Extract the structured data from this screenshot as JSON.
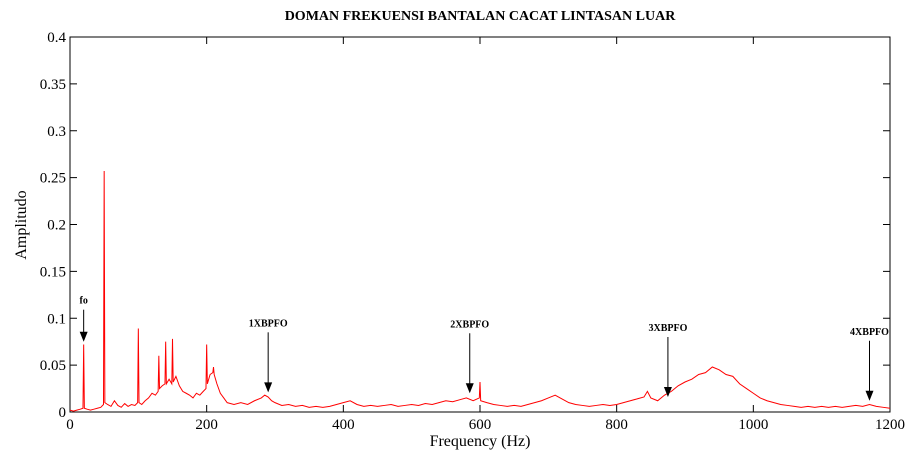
{
  "chart_data": {
    "type": "line",
    "title": "DOMAN FREKUENSI BANTALAN CACAT LINTASAN LUAR",
    "x_label": "Frequency (Hz)",
    "y_label": "Amplitudo",
    "color": "#ff0000",
    "xlim": [
      0,
      1200
    ],
    "ylim": [
      0,
      0.4
    ],
    "xticks": [
      0,
      200,
      400,
      600,
      800,
      1000,
      1200
    ],
    "yticks": [
      0,
      0.05,
      0.1,
      0.15,
      0.2,
      0.25,
      0.3,
      0.35,
      0.4
    ],
    "annotations": [
      {
        "text": "fo",
        "x": 20,
        "y": 0.075
      },
      {
        "text": "1XBPFO",
        "x": 290,
        "y": 0.021
      },
      {
        "text": "2XBPFO",
        "x": 585,
        "y": 0.02
      },
      {
        "text": "3XBPFO",
        "x": 875,
        "y": 0.016
      },
      {
        "text": "4XBPFO",
        "x": 1170,
        "y": 0.012
      }
    ],
    "x": [
      0,
      5,
      10,
      15,
      19,
      20,
      21,
      25,
      30,
      35,
      40,
      45,
      49,
      50,
      51,
      55,
      60,
      65,
      70,
      75,
      80,
      85,
      90,
      95,
      99,
      100,
      101,
      105,
      110,
      115,
      120,
      125,
      129,
      130,
      131,
      135,
      139,
      140,
      141,
      145,
      149,
      150,
      151,
      155,
      160,
      165,
      170,
      175,
      180,
      185,
      190,
      195,
      199,
      200,
      201,
      205,
      209,
      210,
      211,
      215,
      220,
      225,
      230,
      240,
      250,
      260,
      270,
      280,
      285,
      290,
      295,
      300,
      310,
      320,
      330,
      340,
      350,
      360,
      370,
      380,
      390,
      400,
      410,
      420,
      430,
      440,
      450,
      460,
      470,
      480,
      490,
      500,
      510,
      520,
      530,
      540,
      550,
      560,
      570,
      580,
      590,
      599,
      600,
      601,
      610,
      620,
      630,
      640,
      650,
      660,
      670,
      680,
      690,
      700,
      710,
      720,
      730,
      740,
      750,
      760,
      770,
      780,
      790,
      800,
      810,
      820,
      830,
      840,
      845,
      850,
      860,
      870,
      880,
      890,
      900,
      910,
      920,
      930,
      940,
      950,
      960,
      970,
      980,
      990,
      1000,
      1010,
      1020,
      1030,
      1040,
      1050,
      1060,
      1070,
      1080,
      1090,
      1100,
      1110,
      1120,
      1130,
      1140,
      1150,
      1160,
      1170,
      1180,
      1190,
      1200
    ],
    "values": [
      0.002,
      0.001,
      0.002,
      0.003,
      0.004,
      0.072,
      0.004,
      0.003,
      0.002,
      0.003,
      0.004,
      0.005,
      0.008,
      0.257,
      0.01,
      0.008,
      0.006,
      0.012,
      0.007,
      0.005,
      0.009,
      0.006,
      0.008,
      0.007,
      0.01,
      0.089,
      0.01,
      0.008,
      0.012,
      0.015,
      0.02,
      0.018,
      0.022,
      0.06,
      0.025,
      0.028,
      0.03,
      0.075,
      0.03,
      0.035,
      0.03,
      0.078,
      0.032,
      0.038,
      0.028,
      0.022,
      0.02,
      0.018,
      0.015,
      0.02,
      0.018,
      0.022,
      0.025,
      0.072,
      0.03,
      0.04,
      0.042,
      0.048,
      0.04,
      0.03,
      0.02,
      0.015,
      0.01,
      0.008,
      0.01,
      0.008,
      0.012,
      0.015,
      0.018,
      0.016,
      0.012,
      0.01,
      0.007,
      0.008,
      0.006,
      0.007,
      0.005,
      0.006,
      0.005,
      0.006,
      0.008,
      0.01,
      0.012,
      0.008,
      0.006,
      0.007,
      0.006,
      0.007,
      0.008,
      0.006,
      0.007,
      0.008,
      0.007,
      0.009,
      0.008,
      0.01,
      0.012,
      0.011,
      0.013,
      0.015,
      0.012,
      0.015,
      0.032,
      0.012,
      0.01,
      0.008,
      0.007,
      0.006,
      0.007,
      0.006,
      0.008,
      0.01,
      0.012,
      0.015,
      0.018,
      0.014,
      0.01,
      0.008,
      0.007,
      0.006,
      0.007,
      0.008,
      0.007,
      0.008,
      0.01,
      0.012,
      0.014,
      0.016,
      0.022,
      0.015,
      0.012,
      0.018,
      0.022,
      0.028,
      0.032,
      0.035,
      0.04,
      0.042,
      0.048,
      0.045,
      0.04,
      0.038,
      0.03,
      0.025,
      0.02,
      0.015,
      0.012,
      0.01,
      0.008,
      0.007,
      0.006,
      0.005,
      0.006,
      0.005,
      0.006,
      0.005,
      0.006,
      0.005,
      0.006,
      0.007,
      0.006,
      0.008,
      0.006,
      0.005,
      0.004
    ]
  }
}
